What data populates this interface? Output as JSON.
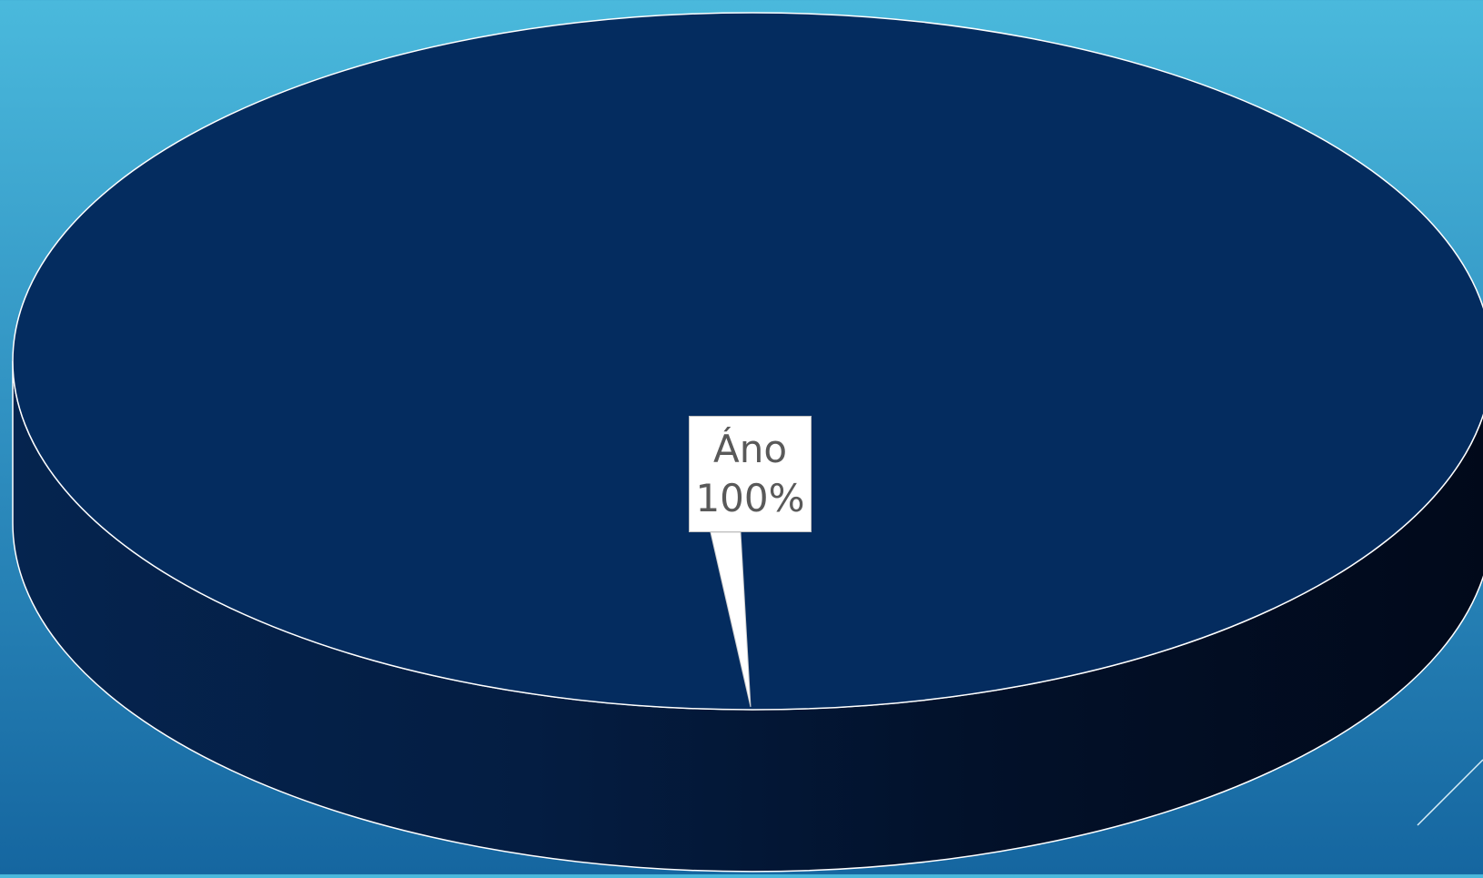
{
  "chart_data": {
    "type": "pie",
    "style": "3d",
    "slices": [
      {
        "label": "Áno",
        "value": 100,
        "display": "100%"
      }
    ],
    "data_label": {
      "category": "Áno",
      "percent": "100%"
    },
    "title": "",
    "legend": "none"
  },
  "colors": {
    "slice_top": "#042c5f",
    "slice_side_dark": "#020f23",
    "slice_side_mid": "#051f44",
    "outline": "#ffffff",
    "background_top": "#4ab9dc",
    "background_bottom": "#1566a0",
    "label_text": "#595959"
  }
}
